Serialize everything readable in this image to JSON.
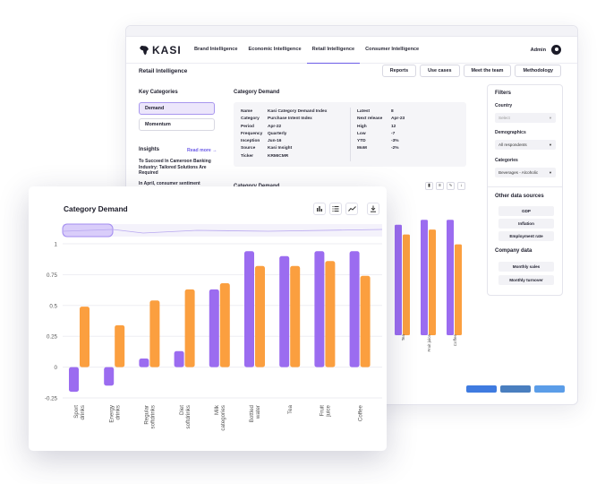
{
  "app": {
    "logo_text": "KASI",
    "nav": [
      "Brand Intelligence",
      "Economic Intelligence",
      "Retail Intelligence",
      "Consumer Intelligence"
    ],
    "active_nav": "Retail Intelligence",
    "user": "Admin"
  },
  "page": {
    "title": "Retail Intelligence",
    "buttons": [
      "Reports",
      "Use cases",
      "Meet the team",
      "Methodology"
    ]
  },
  "categories": {
    "title": "Key Categories",
    "items": [
      "Demand",
      "Momentum"
    ],
    "selected": "Demand"
  },
  "insights": {
    "title": "Insights",
    "read_more": "Read more →",
    "items": [
      "To Succeed In Cameroon Banking Industry: Tailored Solutions Are Required",
      "In April, consumer sentiment"
    ]
  },
  "meta": {
    "title": "Category Demand",
    "left": [
      [
        "Name",
        "Kasi Category Demand Index"
      ],
      [
        "Category",
        "Purchase Intent Index"
      ],
      [
        "Period",
        "Apr-22"
      ],
      [
        "Frequency",
        "Quarterly"
      ],
      [
        "Inception",
        "Jun-16"
      ],
      [
        "Source",
        "Kasi Insight"
      ],
      [
        "Ticker",
        "KRMICMR"
      ]
    ],
    "right": [
      [
        "Latest",
        "8"
      ],
      [
        "Next release",
        "Apr-23"
      ],
      [
        "High",
        "12"
      ],
      [
        "Low",
        "-7"
      ],
      [
        "YTD",
        "-3%"
      ],
      [
        "MoM",
        "-2%"
      ]
    ]
  },
  "filters": {
    "title": "Filters",
    "country_label": "Country",
    "country_placeholder": "Select",
    "demographics_label": "Demographics",
    "demographics_value": "All respondents",
    "categories_label": "Categories",
    "categories_value": "Beverages - Alcoholic",
    "other_title": "Other data sources",
    "other_items": [
      "GDP",
      "Inflation",
      "Employment rate"
    ],
    "company_title": "Company data",
    "company_items": [
      "Monthly sales",
      "Monthly turnover"
    ]
  },
  "colors": {
    "purple": "#9b6cf0",
    "orange": "#fb9f3f",
    "accent": "#6c5ce7",
    "footer_buttons": [
      "#3f7be0",
      "#4a7fbf",
      "#5b9de8"
    ]
  },
  "chart_data": {
    "type": "bar",
    "title": "Category Demand",
    "categories": [
      "Sport drinks",
      "Energy drinks",
      "Regular softdrinks",
      "Diet softdrinks",
      "Milk categories",
      "Bottled water",
      "Tea",
      "Fruit juice",
      "Coffee"
    ],
    "series": [
      {
        "values": [
          -0.2,
          -0.15,
          0.07,
          0.13,
          0.63,
          0.94,
          0.9,
          0.94,
          0.94
        ]
      },
      {
        "values": [
          0.49,
          0.34,
          0.54,
          0.63,
          0.68,
          0.82,
          0.82,
          0.86,
          0.74
        ]
      }
    ],
    "ylim": [
      -0.25,
      1
    ],
    "yticks": [
      "1",
      "0.75",
      "0.5",
      "0.25",
      "0",
      "-0.25"
    ],
    "grid": true,
    "xlabel": "",
    "ylabel": ""
  }
}
